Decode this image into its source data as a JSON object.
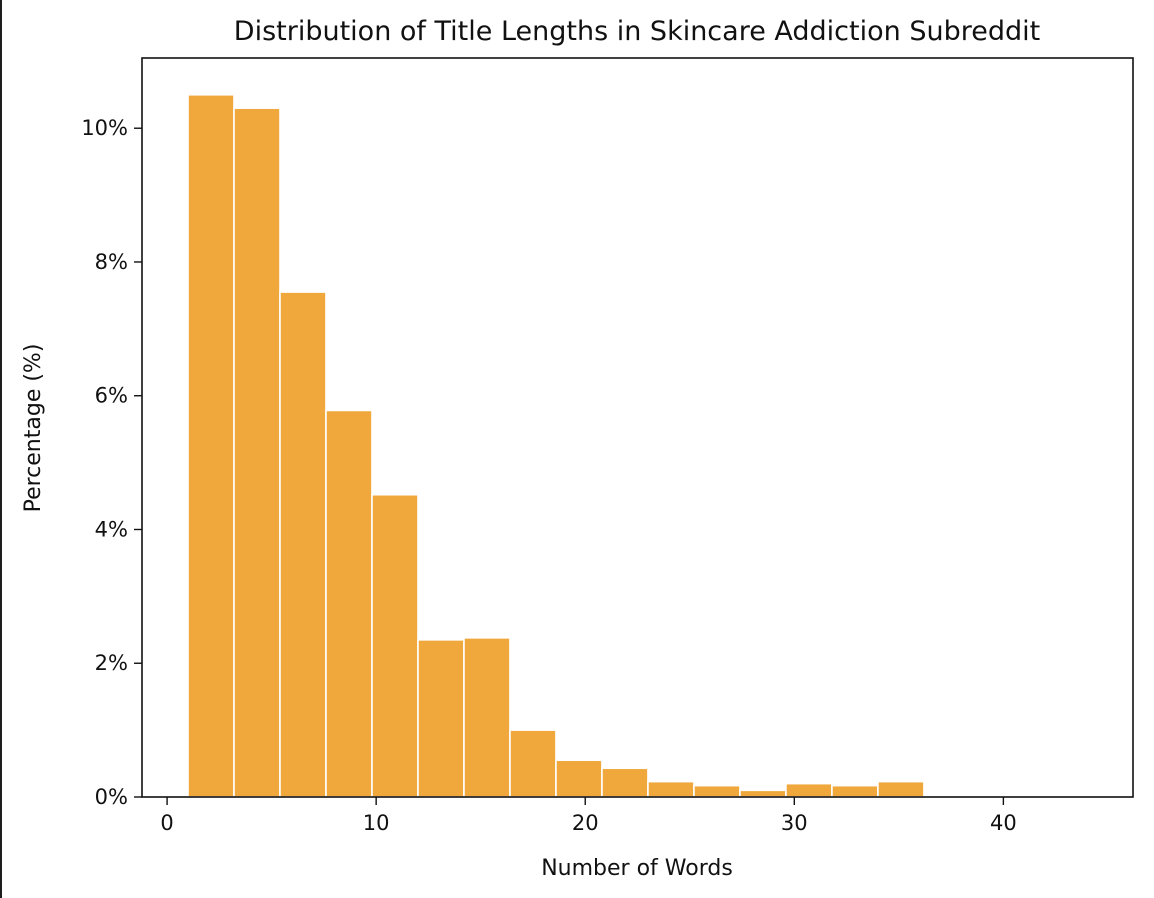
{
  "chart_data": {
    "type": "bar",
    "title": "Distribution of Title Lengths in Skincare Addiction Subreddit",
    "xlabel": "Number of Words",
    "ylabel": "Percentage (%)",
    "xlim": [
      -1.2,
      46.2
    ],
    "ylim": [
      0,
      11.05
    ],
    "x_ticks": [
      0,
      10,
      20,
      30,
      40
    ],
    "y_ticks": [
      0,
      2,
      4,
      6,
      8,
      10
    ],
    "y_tick_labels": [
      "0%",
      "2%",
      "4%",
      "6%",
      "8%",
      "10%"
    ],
    "grid": false,
    "bar_color": "#F0A83C",
    "edge_color": "#ffffff",
    "bins": [
      {
        "x0": 1.0,
        "x1": 3.2,
        "value": 10.5
      },
      {
        "x0": 3.2,
        "x1": 5.4,
        "value": 10.3
      },
      {
        "x0": 5.4,
        "x1": 7.6,
        "value": 7.55
      },
      {
        "x0": 7.6,
        "x1": 9.8,
        "value": 5.78
      },
      {
        "x0": 9.8,
        "x1": 12.0,
        "value": 4.52
      },
      {
        "x0": 12.0,
        "x1": 14.2,
        "value": 2.35
      },
      {
        "x0": 14.2,
        "x1": 16.4,
        "value": 2.38
      },
      {
        "x0": 16.4,
        "x1": 18.6,
        "value": 1.0
      },
      {
        "x0": 18.6,
        "x1": 20.8,
        "value": 0.55
      },
      {
        "x0": 20.8,
        "x1": 23.0,
        "value": 0.43
      },
      {
        "x0": 23.0,
        "x1": 25.2,
        "value": 0.23
      },
      {
        "x0": 25.2,
        "x1": 27.4,
        "value": 0.17
      },
      {
        "x0": 27.4,
        "x1": 29.6,
        "value": 0.1
      },
      {
        "x0": 29.6,
        "x1": 31.8,
        "value": 0.2
      },
      {
        "x0": 31.8,
        "x1": 34.0,
        "value": 0.17
      },
      {
        "x0": 34.0,
        "x1": 36.2,
        "value": 0.23
      },
      {
        "x0": 36.2,
        "x1": 38.4,
        "value": 0.0
      },
      {
        "x0": 38.4,
        "x1": 40.6,
        "value": 0.0
      },
      {
        "x0": 40.6,
        "x1": 42.8,
        "value": 0.0
      },
      {
        "x0": 42.8,
        "x1": 45.0,
        "value": 0.0
      }
    ]
  }
}
